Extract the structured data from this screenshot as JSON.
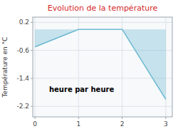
{
  "chart_data": {
    "type": "area",
    "title": "Evolution de la température",
    "ylabel": "Température en °C",
    "annotation": "heure par heure",
    "x": [
      0,
      1,
      2,
      3
    ],
    "values": [
      -0.5,
      0.0,
      0.0,
      -2.0
    ],
    "color": "#6ab8d0",
    "xlim": [
      -0.05,
      3.15
    ],
    "ylim": [
      -2.5,
      0.35
    ],
    "xticks": [
      0,
      1,
      2,
      3
    ],
    "yticks": [
      0.2,
      -0.6,
      -1.4,
      -2.2
    ],
    "grid": true
  }
}
